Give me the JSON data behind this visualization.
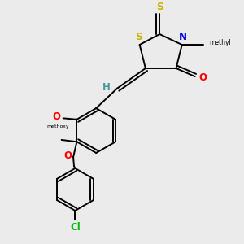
{
  "bg_color": "#ebebeb",
  "atom_colors": {
    "S": "#c8b400",
    "N": "#0000ee",
    "O": "#ff0000",
    "Cl": "#00bb00",
    "C": "#000000",
    "H": "#4a9898"
  },
  "bond_color": "#000000",
  "lw": 1.4,
  "fs": 8.5
}
